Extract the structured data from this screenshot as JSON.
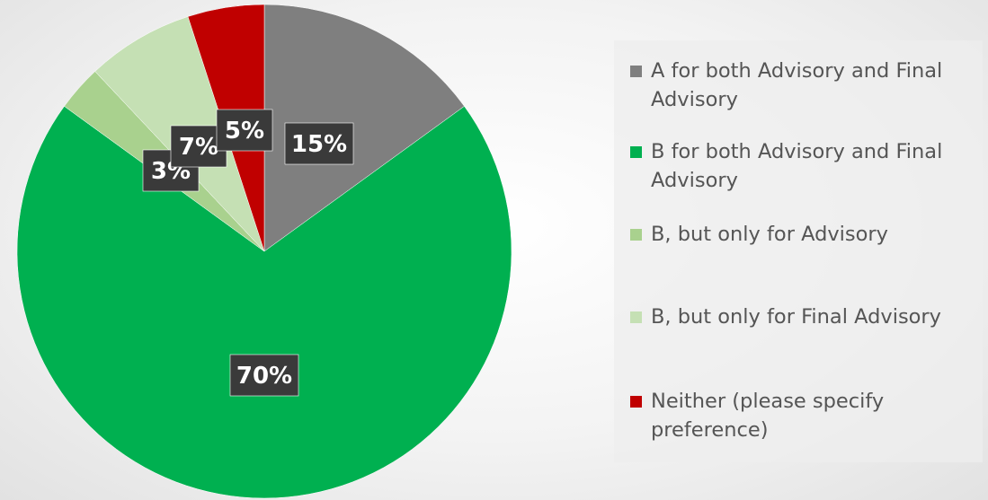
{
  "chart_data": {
    "type": "pie",
    "title": "",
    "series": [
      {
        "values": [
          15,
          70,
          3,
          7,
          5
        ],
        "categories": [
          "A for both Advisory and Final Advisory",
          "B for both Advisory and Final Advisory",
          "B, but only for Advisory",
          "B, but only for Final Advisory",
          "Neither (please specify preference)"
        ]
      }
    ],
    "categories": [
      "A for both Advisory and Final Advisory",
      "B for both Advisory and Final Advisory",
      "B, but only for Advisory",
      "B, but only for Final Advisory",
      "Neither (please specify preference)"
    ],
    "values": [
      15,
      70,
      3,
      7,
      5
    ],
    "data_labels": [
      "15%",
      "70%",
      "3%",
      "7%",
      "5%"
    ],
    "colors": [
      "#7f7f7f",
      "#00b050",
      "#a9d18e",
      "#c5e0b4",
      "#c00000"
    ],
    "start_angle_deg": 0,
    "direction": "clockwise",
    "legend_placement": "right"
  }
}
